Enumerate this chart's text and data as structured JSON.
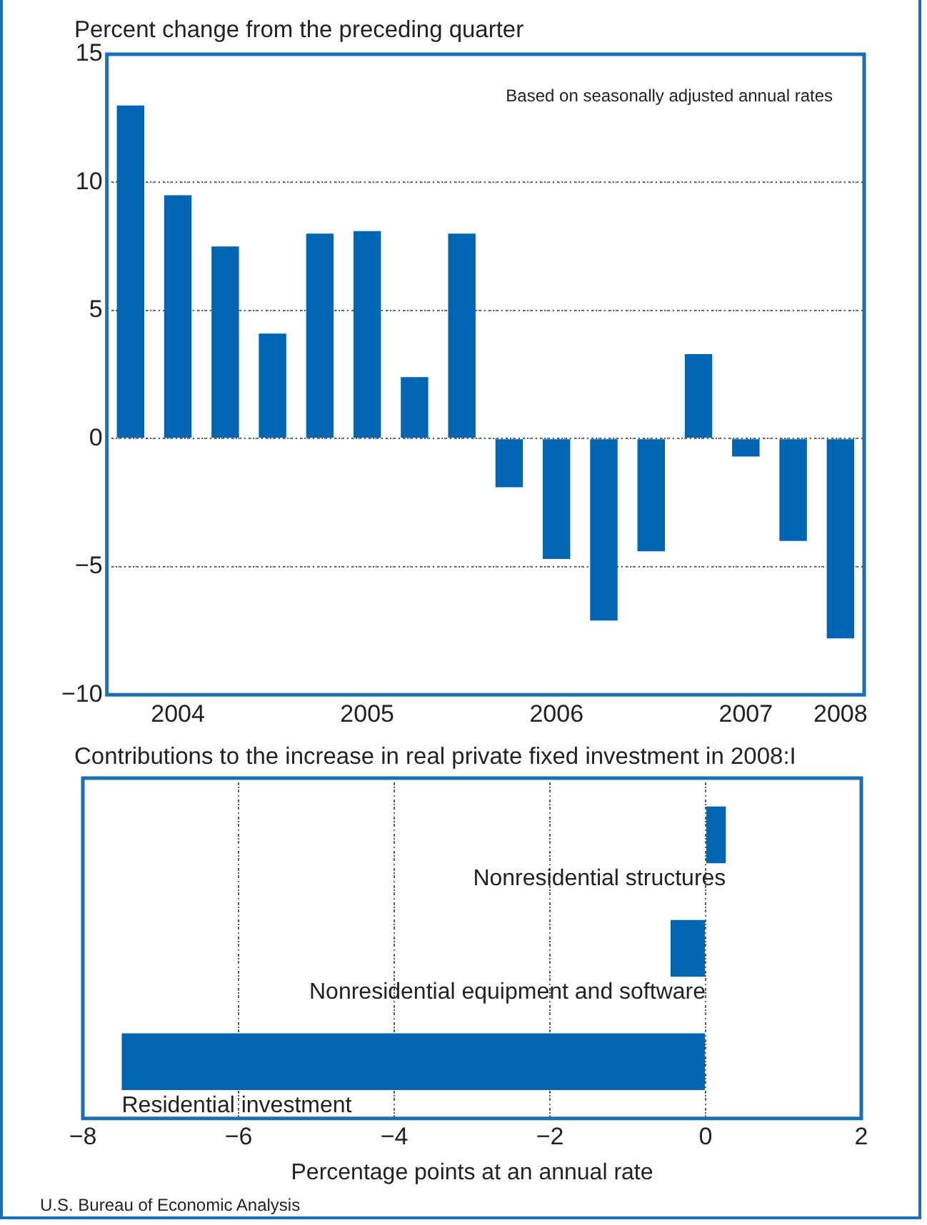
{
  "chart_data": [
    {
      "type": "bar",
      "title": "Percent change from the preceding quarter",
      "categories": [
        null,
        "2004",
        null,
        null,
        null,
        "2005",
        null,
        null,
        null,
        "2006",
        null,
        null,
        null,
        "2007",
        null,
        "2008"
      ],
      "values": [
        13.0,
        9.5,
        7.5,
        4.1,
        8.0,
        8.1,
        2.4,
        8.0,
        -1.9,
        -4.7,
        -7.1,
        -4.4,
        3.3,
        -0.7,
        -4.0,
        -7.8
      ],
      "color": "#0066b3",
      "ylim": [
        -10,
        15
      ],
      "yticks": [
        {
          "value": -10,
          "label": "−10"
        },
        {
          "value": -5,
          "label": "−5"
        },
        0,
        5,
        10,
        15
      ],
      "grid": "y",
      "annotations": [
        "Based on seasonally adjusted annual rates"
      ]
    },
    {
      "type": "bar",
      "orientation": "horizontal",
      "title": "Contributions to the increase in real private fixed investment in 2008:I",
      "categories": [
        "Nonresidential structures",
        "Nonresidential equipment and software",
        "Residential investment"
      ],
      "values": [
        0.26,
        -0.45,
        -7.5
      ],
      "color": "#0066b3",
      "xlim": [
        -8,
        2
      ],
      "xticks": [
        {
          "value": -8,
          "label": "−8"
        },
        {
          "value": -6,
          "label": "−6"
        },
        {
          "value": -4,
          "label": "−4"
        },
        {
          "value": -2,
          "label": "−2"
        },
        0,
        2
      ],
      "xlabel": "Percentage points at an annual rate",
      "grid": "x",
      "annotations": [
        "U.S. Bureau of Economic Analysis"
      ]
    }
  ]
}
